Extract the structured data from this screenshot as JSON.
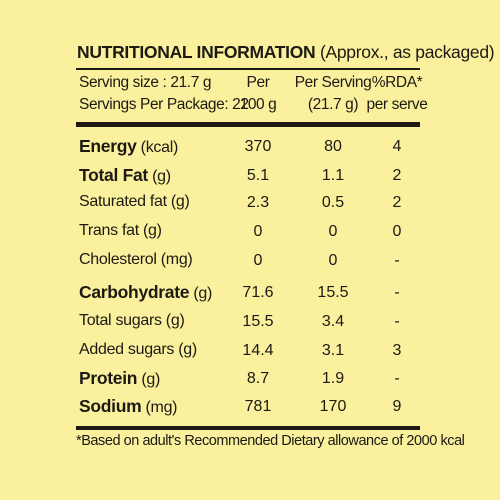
{
  "title": {
    "bold": "NUTRITIONAL INFORMATION",
    "rest": " (Approx., as packaged)"
  },
  "serving": {
    "size": "Serving size : 21.7 g",
    "per_package": "Servings Per Package: 22"
  },
  "columns": [
    {
      "line1": "Per",
      "line2": "100 g"
    },
    {
      "line1": "Per Serving",
      "line2": "(21.7 g)"
    },
    {
      "line1": "%RDA*",
      "line2": "per serve"
    }
  ],
  "rows": [
    {
      "name": "Energy",
      "unit": " (kcal)",
      "bold": true,
      "per100": "370",
      "perServing": "80",
      "rda": "4"
    },
    {
      "name": "Total Fat",
      "unit": " (g)",
      "bold": true,
      "per100": "5.1",
      "perServing": "1.1",
      "rda": "2"
    },
    {
      "name": "Saturated fat (g)",
      "unit": "",
      "bold": false,
      "per100": "2.3",
      "perServing": "0.5",
      "rda": "2"
    },
    {
      "name": "Trans fat (g)",
      "unit": "",
      "bold": false,
      "per100": "0",
      "perServing": "0",
      "rda": "0"
    },
    {
      "name": "Cholesterol (mg)",
      "unit": "",
      "bold": false,
      "per100": "0",
      "perServing": "0",
      "rda": "-"
    },
    {
      "name": "Carbohydrate",
      "unit": " (g)",
      "bold": true,
      "per100": "71.6",
      "perServing": "15.5",
      "rda": "-"
    },
    {
      "name": "Total sugars (g)",
      "unit": "",
      "bold": false,
      "per100": "15.5",
      "perServing": "3.4",
      "rda": "-"
    },
    {
      "name": "Added sugars (g)",
      "unit": "",
      "bold": false,
      "per100": "14.4",
      "perServing": "3.1",
      "rda": "3"
    },
    {
      "name": "Protein",
      "unit": " (g)",
      "bold": true,
      "per100": "8.7",
      "perServing": "1.9",
      "rda": "-"
    },
    {
      "name": "Sodium",
      "unit": " (mg)",
      "bold": true,
      "per100": "781",
      "perServing": "170",
      "rda": "9"
    }
  ],
  "footnote": "*Based on adult's Recommended Dietary allowance of 2000 kcal"
}
